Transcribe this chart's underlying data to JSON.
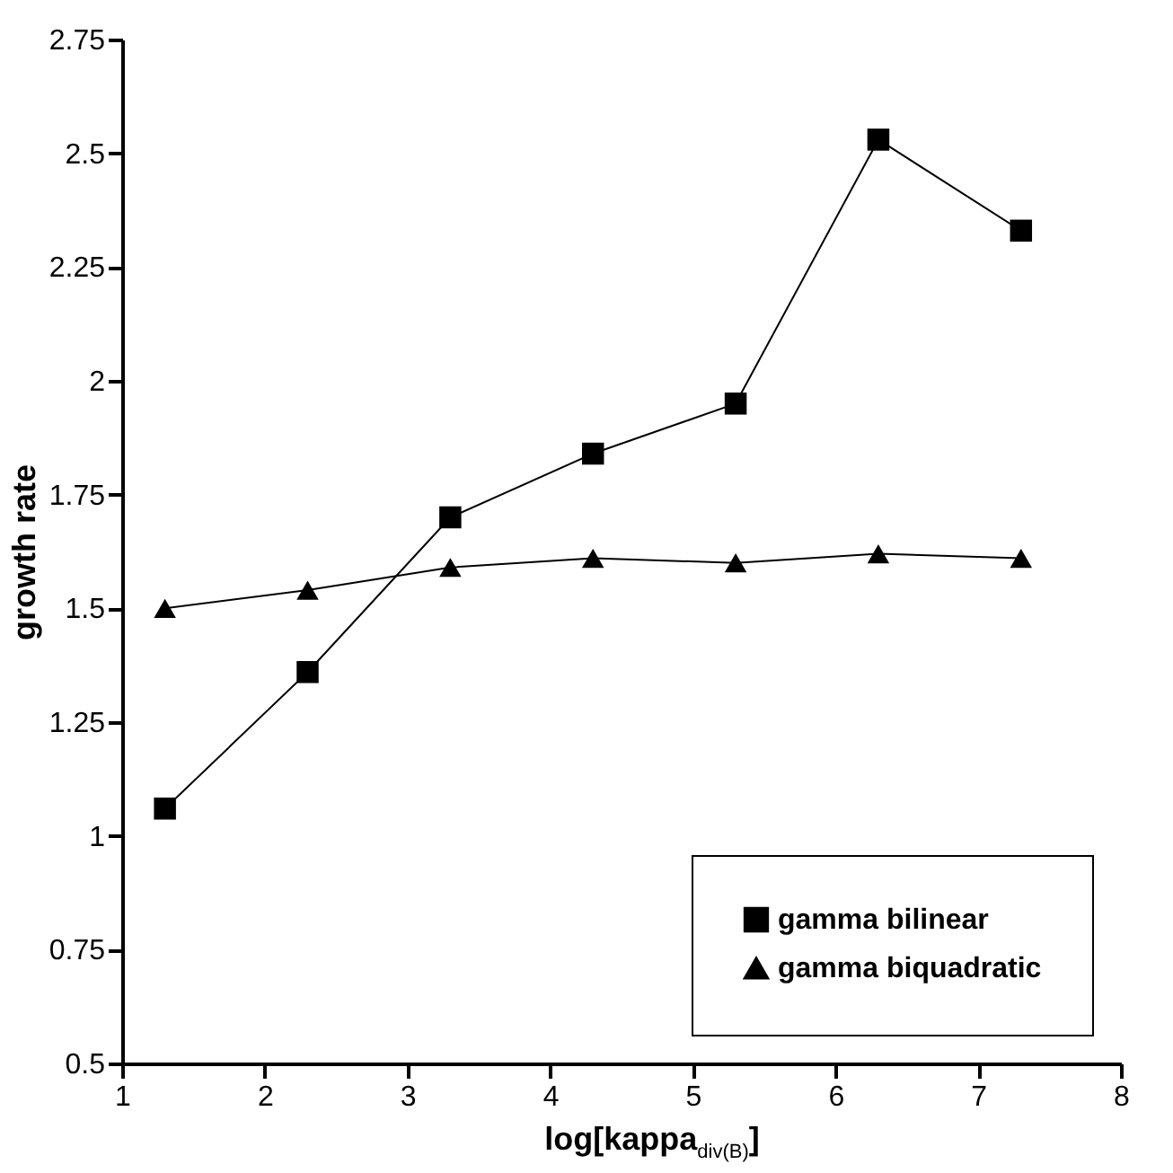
{
  "chart_data": {
    "type": "line",
    "xlabel": "log[kappa$_{div(B)}$]",
    "ylabel": "growth rate",
    "x": [
      1.3,
      2.3,
      3.3,
      4.3,
      5.3,
      6.3,
      7.3
    ],
    "series": [
      {
        "name": "gamma bilinear",
        "color": "#000000",
        "marker": "square",
        "values": [
          1.06,
          1.36,
          1.7,
          1.84,
          1.95,
          2.53,
          2.33
        ]
      },
      {
        "name": "gamma biquadratic",
        "color": "#000000",
        "marker": "triangle",
        "values": [
          1.5,
          1.54,
          1.59,
          1.61,
          1.6,
          1.62,
          1.61
        ]
      }
    ],
    "xlim": [
      1,
      8
    ],
    "xticks": [
      1,
      2,
      3,
      4,
      5,
      6,
      7,
      8
    ],
    "ylim": [
      0.5,
      2.75
    ],
    "yticks": [
      0.5,
      0.75,
      1,
      1.25,
      1.5,
      1.75,
      2,
      2.25,
      2.5,
      2.75
    ],
    "legend": "bottom right",
    "line_style": "solid"
  }
}
